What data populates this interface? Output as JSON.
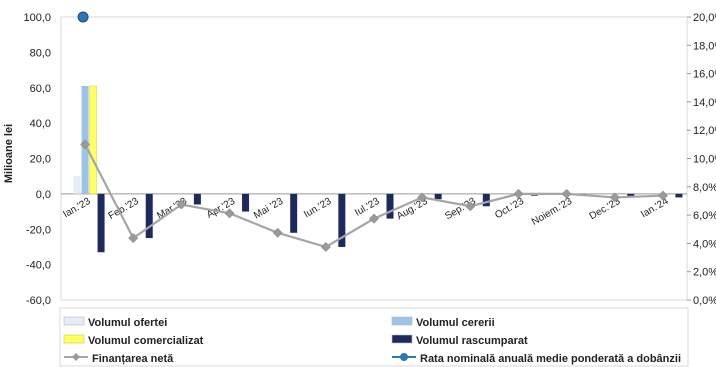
{
  "chart_data": {
    "type": "bar",
    "ylabel": "Milioane lei",
    "ylim": [
      -60,
      100
    ],
    "y_ticks": [
      "100,0",
      "80,0",
      "60,0",
      "40,0",
      "20,0",
      "0,0",
      "-20,0",
      "-40,0",
      "-60,0"
    ],
    "y2lim": [
      0,
      20
    ],
    "y2_ticks": [
      "20,0%",
      "18,0%",
      "16,0%",
      "14,0%",
      "12,0%",
      "10,0%",
      "8,0%",
      "6,0%",
      "4,0%",
      "2,0%",
      "0,0%"
    ],
    "categories": [
      "Ian.'23",
      "Feb.'23",
      "Mar.'23",
      "Apr.'23",
      "Mai '23",
      "Iun.'23",
      "Iul.'23",
      "Aug.'23",
      "Sep.'23",
      "Oct.'23",
      "Noiem.'23",
      "Dec.'23",
      "Ian.'24"
    ],
    "series": [
      {
        "name": "Volumul ofertei",
        "kind": "bar",
        "axis": "left",
        "color": "#e8ecf4",
        "values": [
          10,
          0,
          0,
          0,
          0,
          0,
          0,
          0,
          0,
          0,
          0,
          0,
          0
        ]
      },
      {
        "name": "Volumul cererii",
        "kind": "bar",
        "axis": "left",
        "color": "#9dc3e6",
        "values": [
          61,
          0,
          0,
          0,
          0,
          0,
          0,
          0,
          0,
          0,
          0,
          0,
          0
        ]
      },
      {
        "name": "Volumul comercializat",
        "kind": "bar",
        "axis": "left",
        "color": "#ffff66",
        "values": [
          61,
          0,
          0,
          0,
          0,
          0,
          0,
          0,
          0,
          0,
          0,
          0,
          0
        ]
      },
      {
        "name": "Volumul rascumparat",
        "kind": "bar",
        "axis": "left",
        "color": "#1f2a5c",
        "values": [
          -33,
          -25,
          -6,
          -10,
          -22,
          -30,
          -14,
          -3,
          -7,
          -1,
          -1,
          -2,
          -2
        ]
      },
      {
        "name": "Finanțarea netă",
        "kind": "line",
        "axis": "left",
        "color": "#a6a6a6",
        "values": [
          28,
          -25,
          -6,
          -11,
          -22,
          -30,
          -14,
          -2,
          -7,
          0,
          0,
          -2,
          -1
        ]
      },
      {
        "name": "Rata nominală anuală medie ponderată a dobânzii",
        "kind": "point",
        "axis": "right",
        "color": "#2e75b6",
        "values": [
          20.0,
          null,
          null,
          null,
          null,
          null,
          null,
          null,
          null,
          null,
          null,
          null,
          null
        ]
      }
    ],
    "legend_position": "bottom",
    "grid": false
  }
}
